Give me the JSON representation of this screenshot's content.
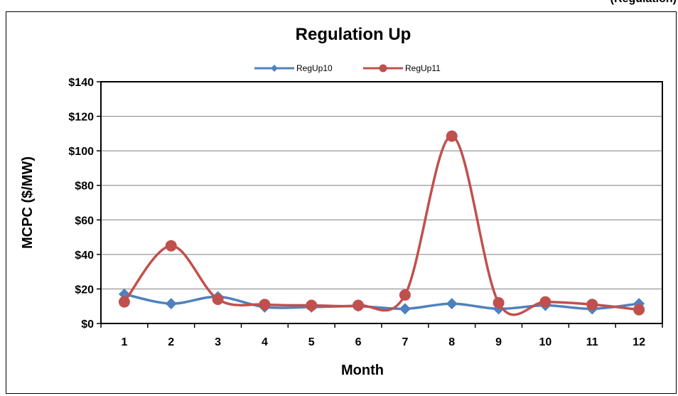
{
  "page": {
    "corner_text": "(Regulation)"
  },
  "chart_data": {
    "type": "line",
    "title": "Regulation Up",
    "xlabel": "Month",
    "ylabel": "MCPC ($/MW)",
    "categories": [
      "1",
      "2",
      "3",
      "4",
      "5",
      "6",
      "7",
      "8",
      "9",
      "10",
      "11",
      "12"
    ],
    "ylim": [
      0,
      140
    ],
    "yticks": [
      0,
      20,
      40,
      60,
      80,
      100,
      120,
      140
    ],
    "ytick_labels": [
      "$0",
      "$20",
      "$40",
      "$60",
      "$80",
      "$100",
      "$120",
      "$140"
    ],
    "grid": true,
    "legend_position": "top-center",
    "series": [
      {
        "name": "RegUp10",
        "color": "#4F81BD",
        "marker": "diamond",
        "values": [
          17,
          11.5,
          15.5,
          9.5,
          9.5,
          10,
          8.5,
          11.5,
          8.5,
          10.5,
          8.5,
          11.5
        ]
      },
      {
        "name": "RegUp11",
        "color": "#C0504D",
        "marker": "circle",
        "values": [
          12.5,
          45,
          14,
          11,
          10.5,
          10.5,
          16.5,
          108.5,
          12,
          12.5,
          11,
          8
        ]
      }
    ]
  }
}
